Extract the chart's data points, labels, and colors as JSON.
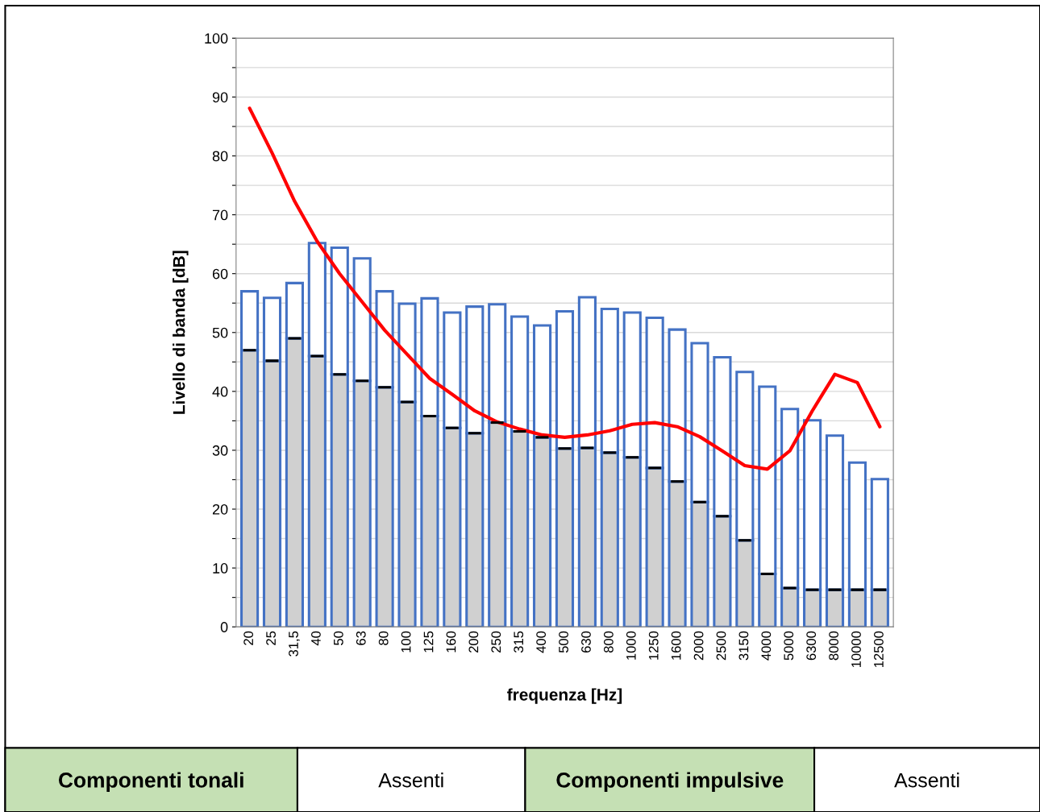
{
  "chart_data": {
    "type": "bar",
    "stacked": true,
    "xlabel": "frequenza [Hz]",
    "ylabel": "Livello di banda [dB]",
    "categories": [
      "20",
      "25",
      "31,5",
      "40",
      "50",
      "63",
      "80",
      "100",
      "125",
      "160",
      "200",
      "250",
      "315",
      "400",
      "500",
      "630",
      "800",
      "1000",
      "1250",
      "1600",
      "2000",
      "2500",
      "3150",
      "4000",
      "5000",
      "6300",
      "8000",
      "10000",
      "12500"
    ],
    "series": [
      {
        "color": "#d0d0d0",
        "values": [
          47.0,
          45.2,
          49.0,
          46.0,
          42.9,
          41.8,
          40.7,
          38.2,
          35.8,
          33.8,
          32.9,
          34.7,
          33.2,
          32.2,
          30.3,
          30.4,
          29.6,
          28.8,
          27.0,
          24.7,
          21.2,
          18.8,
          14.7,
          9.0,
          6.6,
          6.3,
          6.3,
          6.3,
          6.3
        ]
      },
      {
        "color": "#ffffff",
        "values": [
          10.0,
          10.7,
          9.4,
          19.2,
          21.5,
          20.8,
          16.3,
          16.7,
          20.0,
          19.6,
          21.5,
          20.1,
          19.5,
          19.0,
          23.3,
          25.6,
          24.4,
          24.6,
          25.5,
          25.8,
          27.0,
          27.0,
          28.6,
          31.8,
          30.4,
          28.8,
          26.2,
          21.6,
          18.8
        ]
      },
      {
        "type": "line",
        "color": "#ff0000",
        "values": [
          88.1,
          80.5,
          72.3,
          65.5,
          60.0,
          55.2,
          50.4,
          46.3,
          42.2,
          39.5,
          36.7,
          34.8,
          33.6,
          32.6,
          32.2,
          32.6,
          33.3,
          34.4,
          34.7,
          34.0,
          32.3,
          29.9,
          27.4,
          26.8,
          29.9,
          36.7,
          42.9,
          41.5,
          34.0
        ]
      }
    ],
    "ylim": [
      0,
      100
    ],
    "yticks": [
      0,
      {
        "value": 5,
        "label": null
      },
      10,
      {
        "value": 15,
        "label": null
      },
      20,
      {
        "value": 25,
        "label": null
      },
      30,
      {
        "value": 35,
        "label": null
      },
      40,
      {
        "value": 45,
        "label": null
      },
      50,
      {
        "value": 55,
        "label": null
      },
      60,
      {
        "value": 65,
        "label": null
      },
      70,
      {
        "value": 75,
        "label": null
      },
      80,
      {
        "value": 85,
        "label": null
      },
      90,
      {
        "value": 95,
        "label": null
      },
      100
    ],
    "grid": "y",
    "line_style": "solid",
    "marker": "none",
    "annotations": [
      "Componenti tonali",
      "Assenti",
      "Componenti impulsive",
      "Assenti"
    ]
  }
}
